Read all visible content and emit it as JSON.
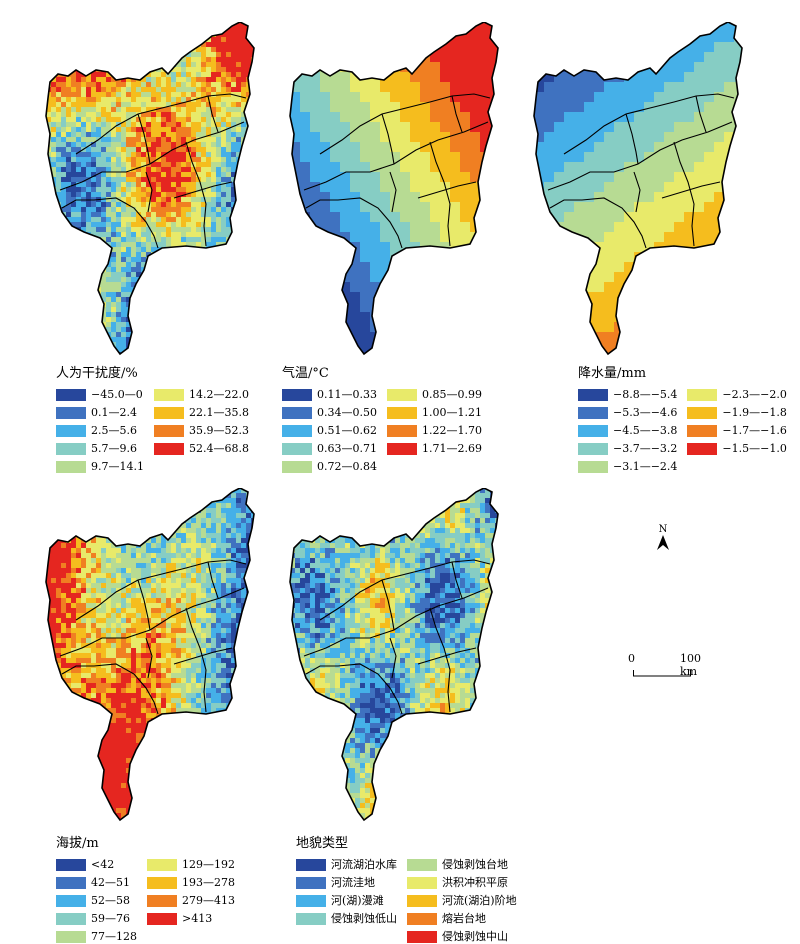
{
  "maps": [
    {
      "id": "disturbance",
      "legend_title": "人为干扰度/%",
      "classes": [
        {
          "label": "−45.0—0",
          "color": "#27479c"
        },
        {
          "label": "0.1—2.4",
          "color": "#3f72c0"
        },
        {
          "label": "2.5—5.6",
          "color": "#45b0e8"
        },
        {
          "label": "5.7—9.6",
          "color": "#86cdc4"
        },
        {
          "label": "9.7—14.1",
          "color": "#b7db93"
        },
        {
          "label": "14.2—22.0",
          "color": "#e8ea6a"
        },
        {
          "label": "22.1—35.8",
          "color": "#f5bd1e"
        },
        {
          "label": "35.9—52.3",
          "color": "#f07f22"
        },
        {
          "label": "52.4—68.8",
          "color": "#e52620"
        }
      ]
    },
    {
      "id": "temperature",
      "legend_title": "气温/°C",
      "classes": [
        {
          "label": "0.11—0.33",
          "color": "#27479c"
        },
        {
          "label": "0.34—0.50",
          "color": "#3f72c0"
        },
        {
          "label": "0.51—0.62",
          "color": "#45b0e8"
        },
        {
          "label": "0.63—0.71",
          "color": "#86cdc4"
        },
        {
          "label": "0.72—0.84",
          "color": "#b7db93"
        },
        {
          "label": "0.85—0.99",
          "color": "#e8ea6a"
        },
        {
          "label": "1.00—1.21",
          "color": "#f5bd1e"
        },
        {
          "label": "1.22—1.70",
          "color": "#f07f22"
        },
        {
          "label": "1.71—2.69",
          "color": "#e52620"
        }
      ]
    },
    {
      "id": "precipitation",
      "legend_title": "降水量/mm",
      "classes": [
        {
          "label": "−8.8—−5.4",
          "color": "#27479c"
        },
        {
          "label": "−5.3—−4.6",
          "color": "#3f72c0"
        },
        {
          "label": "−4.5—−3.8",
          "color": "#45b0e8"
        },
        {
          "label": "−3.7—−3.2",
          "color": "#86cdc4"
        },
        {
          "label": "−3.1—−2.4",
          "color": "#b7db93"
        },
        {
          "label": "−2.3—−2.0",
          "color": "#e8ea6a"
        },
        {
          "label": "−1.9—−1.8",
          "color": "#f5bd1e"
        },
        {
          "label": "−1.7—−1.6",
          "color": "#f07f22"
        },
        {
          "label": "−1.5—−1.0",
          "color": "#e52620"
        }
      ]
    },
    {
      "id": "elevation",
      "legend_title": "海拔/m",
      "classes": [
        {
          "label": "<42",
          "color": "#27479c"
        },
        {
          "label": "42—51",
          "color": "#3f72c0"
        },
        {
          "label": "52—58",
          "color": "#45b0e8"
        },
        {
          "label": "59—76",
          "color": "#86cdc4"
        },
        {
          "label": "77—128",
          "color": "#b7db93"
        },
        {
          "label": "129—192",
          "color": "#e8ea6a"
        },
        {
          "label": "193—278",
          "color": "#f5bd1e"
        },
        {
          "label": "279—413",
          "color": "#f07f22"
        },
        {
          "label": ">413",
          "color": "#e52620"
        }
      ]
    },
    {
      "id": "landform",
      "legend_title": "地貌类型",
      "classes": [
        {
          "label": "河流湖泊水库",
          "color": "#27479c"
        },
        {
          "label": "河流洼地",
          "color": "#3f72c0"
        },
        {
          "label": "河(湖)漫滩",
          "color": "#45b0e8"
        },
        {
          "label": "侵蚀剥蚀低山",
          "color": "#86cdc4"
        },
        {
          "label": "侵蚀剥蚀台地",
          "color": "#b7db93"
        },
        {
          "label": "洪积冲积平原",
          "color": "#e8ea6a"
        },
        {
          "label": "河流(湖泊)阶地",
          "color": "#f5bd1e"
        },
        {
          "label": "熔岩台地",
          "color": "#f07f22"
        },
        {
          "label": "侵蚀剥蚀中山",
          "color": "#e52620"
        }
      ]
    }
  ],
  "north_arrow": {
    "letter": "N"
  },
  "scale_bar": {
    "start_label": "0",
    "end_label": "100 km"
  }
}
